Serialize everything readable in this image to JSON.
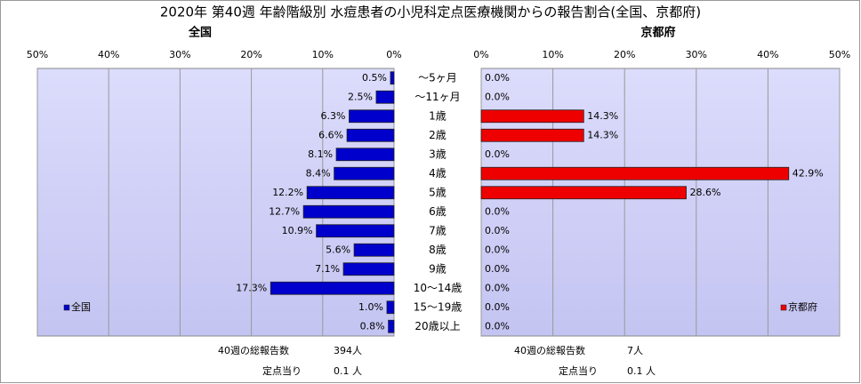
{
  "title": "2020年 第40週 年齢階級別 水痘患者の小児科定点医療機関からの報告割合(全国、京都府)",
  "chart_data": [
    {
      "type": "bar",
      "orientation": "horizontal",
      "direction": "left",
      "title": "全国",
      "categories": [
        "～5ヶ月",
        "～11ヶ月",
        "1歳",
        "2歳",
        "3歳",
        "4歳",
        "5歳",
        "6歳",
        "7歳",
        "8歳",
        "9歳",
        "10～14歳",
        "15～19歳",
        "20歳以上"
      ],
      "series": [
        {
          "name": "全国",
          "color": "#0000cc",
          "values": [
            0.5,
            2.5,
            6.3,
            6.6,
            8.1,
            8.4,
            12.2,
            12.7,
            10.9,
            5.6,
            7.1,
            17.3,
            1.0,
            0.8
          ],
          "value_labels": [
            "0.5%",
            "2.5%",
            "6.3%",
            "6.6%",
            "8.1%",
            "8.4%",
            "12.2%",
            "12.7%",
            "10.9%",
            "5.6%",
            "7.1%",
            "17.3%",
            "1.0%",
            "0.8%"
          ]
        }
      ],
      "xlim": [
        0,
        50
      ],
      "xticks": [
        {
          "value": 0,
          "label": "0%"
        },
        {
          "value": 10,
          "label": "10%"
        },
        {
          "value": 20,
          "label": "20%"
        },
        {
          "value": 30,
          "label": "30%"
        },
        {
          "value": 40,
          "label": "40%"
        },
        {
          "value": 50,
          "label": "50%"
        }
      ],
      "grid": true,
      "legend": "lower left",
      "notes": [
        {
          "label": "40週の総報告数",
          "value": "394人"
        },
        {
          "label": "定点当り",
          "value": "0.1 人"
        }
      ]
    },
    {
      "type": "bar",
      "orientation": "horizontal",
      "direction": "right",
      "title": "京都府",
      "series": [
        {
          "name": "京都府",
          "color": "#ee0000",
          "values": [
            0.0,
            0.0,
            14.3,
            14.3,
            0.0,
            42.9,
            28.6,
            0.0,
            0.0,
            0.0,
            0.0,
            0.0,
            0.0,
            0.0
          ],
          "value_labels": [
            "0.0%",
            "0.0%",
            "14.3%",
            "14.3%",
            "0.0%",
            "42.9%",
            "28.6%",
            "0.0%",
            "0.0%",
            "0.0%",
            "0.0%",
            "0.0%",
            "0.0%",
            "0.0%"
          ]
        }
      ],
      "xlim": [
        0,
        50
      ],
      "xticks": [
        {
          "value": 0,
          "label": "0%"
        },
        {
          "value": 10,
          "label": "10%"
        },
        {
          "value": 20,
          "label": "20%"
        },
        {
          "value": 30,
          "label": "30%"
        },
        {
          "value": 40,
          "label": "40%"
        },
        {
          "value": 50,
          "label": "50%"
        }
      ],
      "grid": true,
      "legend": "lower right",
      "notes": [
        {
          "label": "40週の総報告数",
          "value": "7人"
        },
        {
          "label": "定点当り",
          "value": "0.1 人"
        }
      ]
    }
  ]
}
